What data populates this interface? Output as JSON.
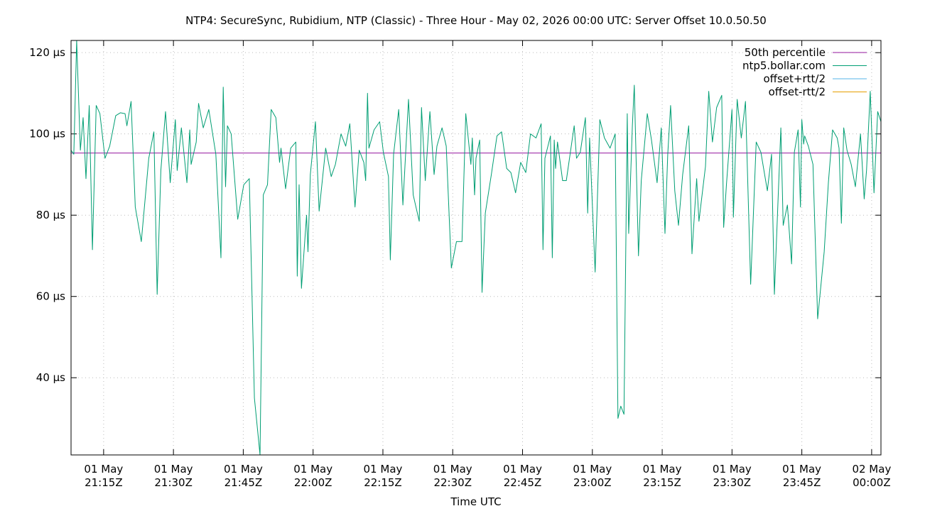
{
  "chart_data": {
    "type": "line",
    "title": "NTP4: SecureSync, Rubidium, NTP (Classic) - Three Hour - May 02, 2026 00:00 UTC: Server Offset 10.0.50.50",
    "xlabel": "Time UTC",
    "ylabel": "",
    "xlim": [
      -7.0,
      167.0
    ],
    "ylim": [
      21.0,
      123.0
    ],
    "y_ticks": [
      {
        "value": 40,
        "label": "40 µs"
      },
      {
        "value": 60,
        "label": "60 µs"
      },
      {
        "value": 80,
        "label": "80 µs"
      },
      {
        "value": 100,
        "label": "100 µs"
      },
      {
        "value": 120,
        "label": "120 µs"
      }
    ],
    "x_ticks": [
      {
        "value": 0,
        "line1": "01 May",
        "line2": "21:15Z"
      },
      {
        "value": 15,
        "line1": "01 May",
        "line2": "21:30Z"
      },
      {
        "value": 30,
        "line1": "01 May",
        "line2": "21:45Z"
      },
      {
        "value": 45,
        "line1": "01 May",
        "line2": "22:00Z"
      },
      {
        "value": 60,
        "line1": "01 May",
        "line2": "22:15Z"
      },
      {
        "value": 75,
        "line1": "01 May",
        "line2": "22:30Z"
      },
      {
        "value": 90,
        "line1": "01 May",
        "line2": "22:45Z"
      },
      {
        "value": 105,
        "line1": "01 May",
        "line2": "23:00Z"
      },
      {
        "value": 120,
        "line1": "01 May",
        "line2": "23:15Z"
      },
      {
        "value": 135,
        "line1": "01 May",
        "line2": "23:30Z"
      },
      {
        "value": 150,
        "line1": "01 May",
        "line2": "23:45Z"
      },
      {
        "value": 165,
        "line1": "02 May",
        "line2": "00:00Z"
      }
    ],
    "grid": true,
    "legend_position": "top-right",
    "colors": {
      "percentile": "#94179e",
      "offset": "#009e73",
      "offset_plus": "#56b4e9",
      "offset_minus": "#e69f00",
      "grid": "#bbbbbb",
      "axis": "#000000"
    },
    "series": [
      {
        "name": "50th percentile",
        "constant": 95.3
      },
      {
        "name": "ntp5.bollar.com",
        "points": [
          [
            -7.0,
            96.0
          ],
          [
            -6.4,
            95.0
          ],
          [
            -5.8,
            123.0
          ],
          [
            -5.0,
            96.0
          ],
          [
            -4.4,
            104.0
          ],
          [
            -3.8,
            89.0
          ],
          [
            -3.1,
            107.0
          ],
          [
            -2.4,
            71.5
          ],
          [
            -1.6,
            107.0
          ],
          [
            -0.8,
            105.0
          ],
          [
            0.3,
            94.0
          ],
          [
            1.3,
            97.0
          ],
          [
            2.6,
            104.5
          ],
          [
            3.6,
            105.2
          ],
          [
            4.6,
            105.0
          ],
          [
            5.0,
            102.0
          ],
          [
            5.9,
            108.0
          ],
          [
            6.8,
            82.0
          ],
          [
            8.1,
            73.5
          ],
          [
            9.7,
            94.0
          ],
          [
            10.8,
            100.5
          ],
          [
            11.5,
            60.5
          ],
          [
            12.3,
            91.0
          ],
          [
            13.3,
            105.5
          ],
          [
            14.3,
            88.0
          ],
          [
            15.4,
            103.5
          ],
          [
            15.8,
            91.0
          ],
          [
            16.7,
            101.5
          ],
          [
            17.9,
            88.0
          ],
          [
            18.5,
            101.0
          ],
          [
            18.8,
            92.5
          ],
          [
            19.9,
            98.0
          ],
          [
            20.4,
            107.5
          ],
          [
            21.4,
            101.5
          ],
          [
            22.6,
            106.0
          ],
          [
            24.1,
            95.0
          ],
          [
            25.2,
            69.5
          ],
          [
            25.7,
            111.5
          ],
          [
            26.2,
            87.0
          ],
          [
            26.6,
            102.0
          ],
          [
            27.4,
            100.0
          ],
          [
            28.8,
            79.0
          ],
          [
            30.1,
            87.5
          ],
          [
            31.3,
            89.0
          ],
          [
            32.4,
            35.0
          ],
          [
            33.6,
            21.0
          ],
          [
            34.3,
            85.0
          ],
          [
            35.2,
            87.5
          ],
          [
            36.0,
            106.0
          ],
          [
            37.0,
            104.0
          ],
          [
            37.8,
            93.0
          ],
          [
            38.1,
            96.5
          ],
          [
            39.1,
            86.5
          ],
          [
            40.2,
            96.5
          ],
          [
            41.3,
            98.0
          ],
          [
            41.6,
            65.0
          ],
          [
            42.0,
            87.5
          ],
          [
            42.5,
            62.0
          ],
          [
            43.6,
            80.0
          ],
          [
            43.9,
            71.0
          ],
          [
            44.4,
            90.0
          ],
          [
            45.5,
            103.0
          ],
          [
            46.3,
            81.0
          ],
          [
            47.7,
            96.5
          ],
          [
            48.9,
            89.5
          ],
          [
            49.8,
            92.5
          ],
          [
            51.0,
            100.0
          ],
          [
            52.0,
            97.0
          ],
          [
            52.9,
            102.5
          ],
          [
            54.0,
            82.0
          ],
          [
            54.9,
            96.0
          ],
          [
            55.9,
            93.0
          ],
          [
            56.3,
            88.5
          ],
          [
            56.7,
            110.0
          ],
          [
            57.0,
            96.5
          ],
          [
            58.1,
            101.0
          ],
          [
            59.3,
            103.0
          ],
          [
            60.1,
            95.5
          ],
          [
            61.2,
            89.5
          ],
          [
            61.6,
            69.0
          ],
          [
            62.3,
            95.0
          ],
          [
            63.4,
            106.0
          ],
          [
            64.3,
            82.5
          ],
          [
            65.5,
            108.5
          ],
          [
            66.5,
            85.0
          ],
          [
            67.8,
            78.5
          ],
          [
            68.3,
            106.5
          ],
          [
            69.1,
            88.5
          ],
          [
            70.1,
            105.5
          ],
          [
            71.0,
            90.0
          ],
          [
            71.6,
            97.0
          ],
          [
            72.7,
            101.5
          ],
          [
            73.6,
            97.0
          ],
          [
            74.7,
            67.0
          ],
          [
            75.8,
            73.5
          ],
          [
            77.0,
            73.5
          ],
          [
            77.8,
            105.0
          ],
          [
            78.9,
            92.5
          ],
          [
            79.2,
            99.0
          ],
          [
            79.7,
            85.0
          ],
          [
            80.0,
            94.0
          ],
          [
            80.8,
            98.5
          ],
          [
            81.3,
            61.0
          ],
          [
            82.0,
            80.5
          ],
          [
            83.3,
            90.0
          ],
          [
            84.5,
            99.5
          ],
          [
            85.5,
            100.5
          ],
          [
            86.6,
            91.5
          ],
          [
            87.5,
            90.5
          ],
          [
            88.5,
            85.5
          ],
          [
            89.6,
            93.0
          ],
          [
            90.7,
            90.5
          ],
          [
            91.7,
            100.0
          ],
          [
            92.9,
            99.0
          ],
          [
            94.0,
            102.5
          ],
          [
            94.4,
            71.5
          ],
          [
            94.8,
            94.0
          ],
          [
            96.0,
            99.5
          ],
          [
            96.4,
            69.5
          ],
          [
            96.8,
            98.5
          ],
          [
            97.1,
            91.5
          ],
          [
            97.5,
            98.0
          ],
          [
            98.6,
            88.5
          ],
          [
            99.4,
            88.5
          ],
          [
            101.1,
            102.0
          ],
          [
            101.6,
            94.0
          ],
          [
            102.4,
            95.5
          ],
          [
            103.5,
            104.0
          ],
          [
            104.0,
            80.5
          ],
          [
            104.4,
            99.0
          ],
          [
            105.6,
            66.0
          ],
          [
            106.6,
            103.5
          ],
          [
            107.6,
            99.0
          ],
          [
            108.8,
            96.5
          ],
          [
            109.9,
            100.0
          ],
          [
            110.5,
            30.0
          ],
          [
            111.1,
            33.0
          ],
          [
            111.8,
            31.0
          ],
          [
            112.5,
            105.0
          ],
          [
            112.8,
            75.5
          ],
          [
            113.6,
            102.0
          ],
          [
            114.0,
            112.0
          ],
          [
            114.9,
            70.0
          ],
          [
            115.5,
            88.5
          ],
          [
            116.8,
            105.0
          ],
          [
            117.7,
            98.5
          ],
          [
            118.9,
            88.0
          ],
          [
            119.8,
            101.5
          ],
          [
            120.6,
            75.5
          ],
          [
            121.2,
            95.0
          ],
          [
            121.8,
            107.0
          ],
          [
            122.7,
            86.0
          ],
          [
            123.5,
            77.5
          ],
          [
            124.4,
            90.0
          ],
          [
            125.7,
            102.0
          ],
          [
            126.4,
            70.5
          ],
          [
            127.4,
            89.0
          ],
          [
            127.9,
            78.5
          ],
          [
            129.3,
            92.0
          ],
          [
            130.0,
            110.5
          ],
          [
            130.8,
            98.0
          ],
          [
            131.7,
            106.5
          ],
          [
            132.8,
            109.5
          ],
          [
            133.2,
            77.0
          ],
          [
            133.8,
            87.5
          ],
          [
            135.0,
            106.0
          ],
          [
            135.3,
            79.5
          ],
          [
            136.1,
            108.5
          ],
          [
            137.0,
            99.0
          ],
          [
            137.9,
            108.0
          ],
          [
            139.0,
            63.0
          ],
          [
            140.2,
            98.0
          ],
          [
            141.2,
            95.5
          ],
          [
            142.6,
            86.0
          ],
          [
            143.5,
            95.0
          ],
          [
            144.1,
            60.5
          ],
          [
            145.5,
            101.5
          ],
          [
            146.0,
            77.5
          ],
          [
            146.9,
            82.5
          ],
          [
            147.8,
            68.0
          ],
          [
            148.4,
            95.5
          ],
          [
            149.2,
            101.0
          ],
          [
            149.7,
            82.0
          ],
          [
            150.0,
            103.5
          ],
          [
            150.4,
            97.5
          ],
          [
            150.6,
            99.5
          ],
          [
            151.4,
            97.0
          ],
          [
            152.4,
            92.5
          ],
          [
            153.4,
            54.5
          ],
          [
            154.8,
            71.0
          ],
          [
            155.7,
            88.0
          ],
          [
            156.6,
            101.0
          ],
          [
            157.6,
            99.0
          ],
          [
            158.0,
            96.5
          ],
          [
            158.5,
            78.0
          ],
          [
            159.0,
            101.5
          ],
          [
            159.7,
            96.0
          ],
          [
            160.6,
            92.5
          ],
          [
            161.5,
            87.0
          ],
          [
            162.6,
            100.0
          ],
          [
            163.4,
            84.0
          ],
          [
            163.9,
            91.0
          ],
          [
            164.7,
            110.5
          ],
          [
            165.5,
            85.5
          ],
          [
            166.3,
            105.5
          ],
          [
            167.0,
            103.0
          ]
        ]
      },
      {
        "name": "offset+rtt/2",
        "points": []
      },
      {
        "name": "offset-rtt/2",
        "points": []
      }
    ]
  }
}
